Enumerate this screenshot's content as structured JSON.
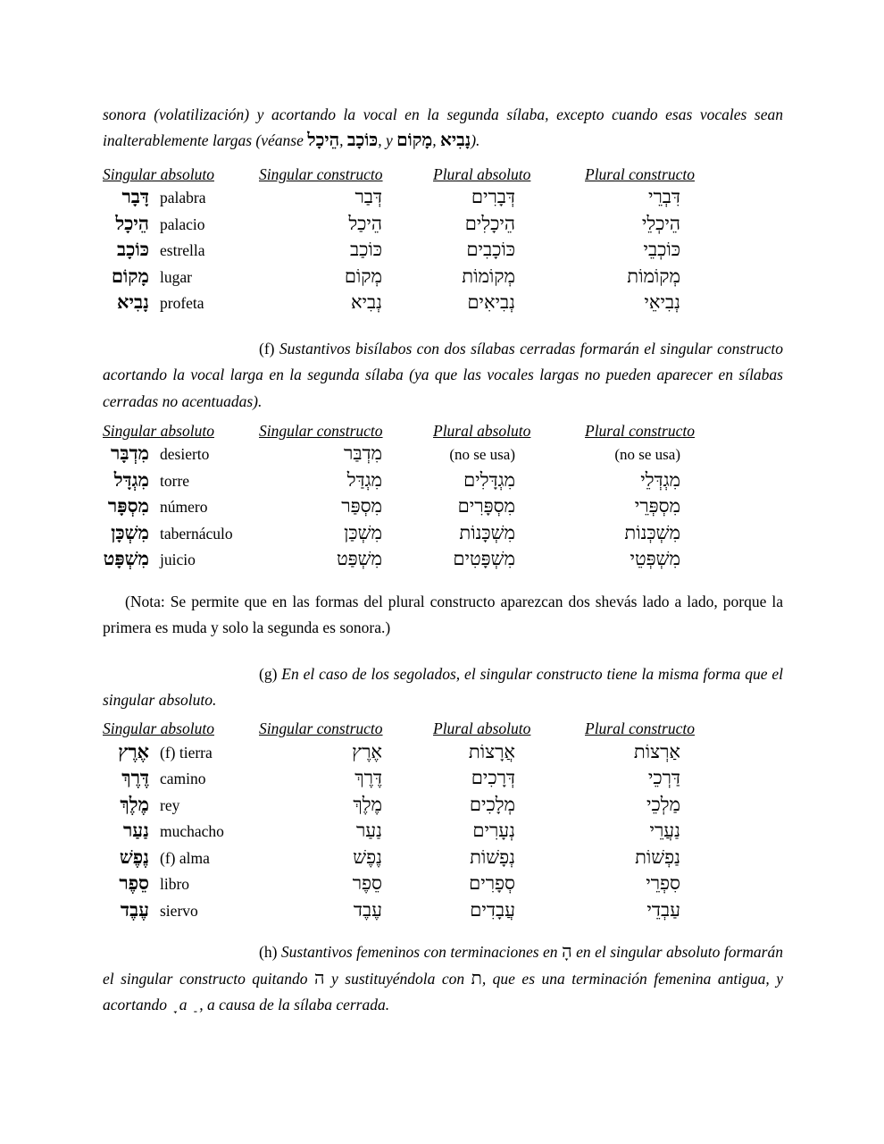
{
  "intro": {
    "segments": [
      {
        "t": "sonora (volatilización) y acortando la vocal en la segunda sílaba, excepto cuando esas vocales sean inalterablemente largas (véanse "
      },
      {
        "t": "הֵיכָל",
        "he": true,
        "bold": true
      },
      {
        "t": ", "
      },
      {
        "t": "כּוֹכָב",
        "he": true,
        "bold": true
      },
      {
        "t": ", y "
      },
      {
        "t": "מָקוֹם",
        "he": true,
        "bold": true
      },
      {
        "t": ", "
      },
      {
        "t": "נָבִיא",
        "he": true,
        "bold": true
      },
      {
        "t": ")."
      }
    ]
  },
  "section_f": {
    "segments": [
      {
        "t": "(f) ",
        "roman": true
      },
      {
        "t": "Sustantivos bisílabos con dos sílabas cerradas formarán el singular constructo acortando la vocal larga en la segunda sílaba (ya que las vocales largas no pueden aparecer en sílabas cerradas no acentuadas)."
      }
    ]
  },
  "nota": {
    "text": "(Nota: Se permite que en las formas del plural constructo aparezcan dos shevás lado a lado, porque la primera es muda y solo la segunda es sonora.)"
  },
  "section_g": {
    "segments": [
      {
        "t": "(g) ",
        "roman": true
      },
      {
        "t": "En el caso de los segolados, el singular constructo tiene la misma forma que el singular absoluto."
      }
    ]
  },
  "section_h": {
    "segments": [
      {
        "t": "(h) ",
        "roman": true
      },
      {
        "t": "Sustantivos femeninos con terminaciones en "
      },
      {
        "t": "הָ",
        "he": true
      },
      {
        "t": " en el singular absoluto formarán el singular constructo quitando "
      },
      {
        "t": "ה",
        "he": true
      },
      {
        "t": " y sustituyéndola con "
      },
      {
        "t": "ת",
        "he": true
      },
      {
        "t": ", que es una terminación femenina antigua, y acortando "
      },
      {
        "t": " ָ",
        "he": true
      },
      {
        "t": " a "
      },
      {
        "t": " ַ",
        "he": true
      },
      {
        "t": " , a causa de la sílaba cerrada."
      }
    ]
  },
  "tables": [
    {
      "headers": [
        "Singular absoluto",
        "Singular constructo",
        "Plural absoluto",
        "Plural constructo"
      ],
      "rows": [
        {
          "word": "דָּבָר",
          "gloss": "palabra",
          "cons": "דְּבַר",
          "pl_abs": "דְּבָרִים",
          "pl_cons": "דִּבְרֵי"
        },
        {
          "word": "הֵיכָל",
          "gloss": "palacio",
          "cons": "הֵיכַל",
          "pl_abs": "הֵיכָלִים",
          "pl_cons": "הֵיכְלֵי"
        },
        {
          "word": "כּוֹכָב",
          "gloss": "estrella",
          "cons": "כּוֹכַב",
          "pl_abs": "כּוֹכָבִים",
          "pl_cons": "כּוֹכְבֵי"
        },
        {
          "word": "מָקוֹם",
          "gloss": "lugar",
          "cons": "מְקוֹם",
          "pl_abs": "מְקוֹמוֹת",
          "pl_cons": "מְקוֹמוֹת"
        },
        {
          "word": "נָבִיא",
          "gloss": "profeta",
          "cons": "נְבִיא",
          "pl_abs": "נְבִיאִים",
          "pl_cons": "נְבִיאֵי"
        }
      ]
    },
    {
      "headers": [
        "Singular absoluto",
        "Singular constructo",
        "Plural absoluto",
        "Plural constructo"
      ],
      "rows": [
        {
          "word": "מִדְבָּר",
          "gloss": "desierto",
          "cons": "מִדְבַּר",
          "pl_abs": "(no se usa)",
          "pa_cls": "note",
          "pl_cons": "(no se usa)",
          "pc_cls": "note"
        },
        {
          "word": "מִגְדָּל",
          "gloss": "torre",
          "cons": "מִגְדַּל",
          "pl_abs": "מִגְדָּלִים",
          "pl_cons": "מִגְדְּלֵי"
        },
        {
          "word": "מִסְפָּר",
          "gloss": "número",
          "cons": "מִסְפַּר",
          "pl_abs": "מִסְפָּרִים",
          "pl_cons": "מִסְפְּרֵי"
        },
        {
          "word": "מִשְׁכָּן",
          "gloss": "tabernáculo",
          "cons": "מִשְׁכַּן",
          "pl_abs": "מִשְׁכָּנוֹת",
          "pl_cons": "מִשְׁכְּנוֹת"
        },
        {
          "word": "מִשְׁפָּט",
          "gloss": "juicio",
          "cons": "מִשְׁפַּט",
          "pl_abs": "מִשְׁפָּטִים",
          "pl_cons": "מִשְׁפְּטֵי"
        }
      ]
    },
    {
      "headers": [
        "Singular absoluto",
        "Singular constructo",
        "Plural absoluto",
        "Plural constructo"
      ],
      "rows": [
        {
          "word": "אֶרֶץ",
          "gloss": "(f) tierra",
          "cons": "אֶרֶץ",
          "pl_abs": "אֲרָצוֹת",
          "pl_cons": "אַרְצוֹת"
        },
        {
          "word": "דֶּרֶךְ",
          "gloss": "camino",
          "cons": "דֶּרֶךְ",
          "pl_abs": "דְּרָכִים",
          "pl_cons": "דַּרְכֵי"
        },
        {
          "word": "מֶלֶךְ",
          "gloss": "rey",
          "cons": "מֶלֶךְ",
          "pl_abs": "מְלָכִים",
          "pl_cons": "מַלְכֵי"
        },
        {
          "word": "נַעַר",
          "gloss": "muchacho",
          "cons": "נַעַר",
          "pl_abs": "נְעָרִים",
          "pl_cons": "נַעֲרֵי"
        },
        {
          "word": "נֶפֶשׁ",
          "gloss": "(f) alma",
          "cons": "נֶפֶשׁ",
          "pl_abs": "נְפָשׁוֹת",
          "pl_cons": "נַפְשׁוֹת"
        },
        {
          "word": "סֵפֶר",
          "gloss": "libro",
          "cons": "סֵפֶר",
          "pl_abs": "סְפָרִים",
          "pl_cons": "סִפְרֵי"
        },
        {
          "word": "עֶבֶד",
          "gloss": "siervo",
          "cons": "עֶבֶד",
          "pl_abs": "עֲבָדִים",
          "pl_cons": "עַבְדֵי"
        }
      ]
    }
  ]
}
